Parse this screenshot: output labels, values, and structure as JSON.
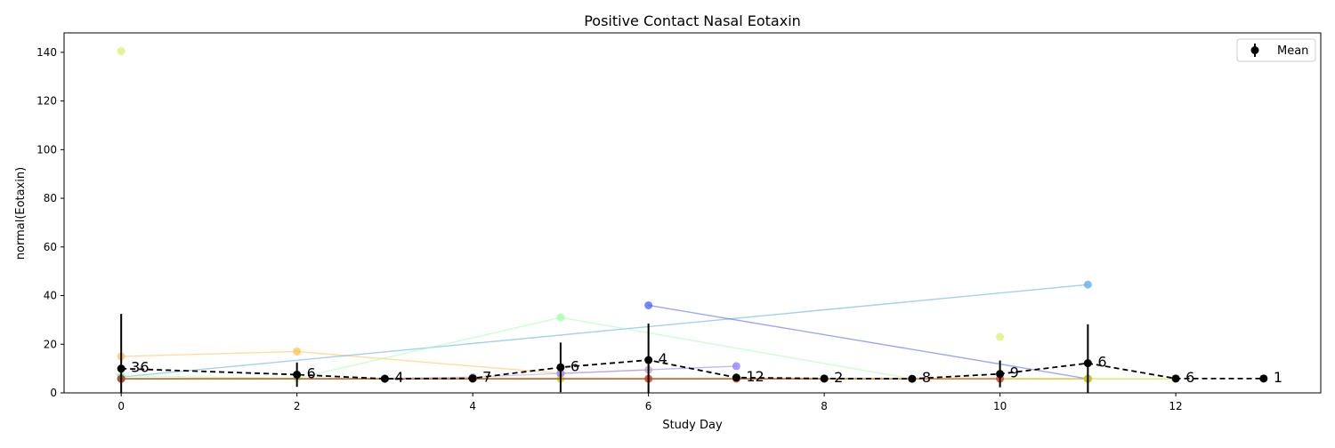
{
  "chart_data": {
    "type": "line",
    "title": "Positive Contact Nasal Eotaxin",
    "xlabel": "Study Day",
    "ylabel": "normal(Eotaxin)",
    "xlim": [
      -0.65,
      13.65
    ],
    "ylim": [
      0,
      148
    ],
    "xticks": [
      0,
      2,
      4,
      6,
      8,
      10,
      12
    ],
    "yticks": [
      0,
      20,
      40,
      60,
      80,
      100,
      120,
      140
    ],
    "grid": false,
    "legend": {
      "position": "top-right",
      "entries": [
        "Mean"
      ]
    },
    "mean": {
      "name": "Mean",
      "color": "#000000",
      "x": [
        0,
        2,
        3,
        4,
        5,
        6,
        7,
        8,
        9,
        10,
        11,
        12,
        13
      ],
      "y": [
        10,
        7.5,
        5.8,
        6,
        10.5,
        13.5,
        6.3,
        5.9,
        5.8,
        7.8,
        12.2,
        5.9,
        5.9
      ],
      "err": [
        22.5,
        5,
        0.3,
        0.6,
        10.2,
        15,
        0.6,
        0.2,
        0.2,
        5.5,
        16,
        0.2,
        0
      ],
      "counts": [
        "36",
        "6",
        "4",
        "7",
        "6",
        "4",
        "12",
        "2",
        "8",
        "9",
        "6",
        "6",
        "1"
      ]
    },
    "subjects": [
      {
        "color": "#ffc04d",
        "x": [
          0,
          2,
          5
        ],
        "y": [
          15,
          17,
          8
        ]
      },
      {
        "color": "#5aa9e6",
        "x": [
          0,
          11
        ],
        "y": [
          6.5,
          44.5
        ]
      },
      {
        "color": "#9effa8",
        "x": [
          0,
          2,
          5,
          9
        ],
        "y": [
          7,
          6,
          31,
          5.8
        ]
      },
      {
        "color": "#4a5ef5",
        "x": [
          6,
          11
        ],
        "y": [
          36,
          5.8
        ]
      },
      {
        "color": "#ff8c1a",
        "x": [
          0,
          11
        ],
        "y": [
          5.8,
          5.8
        ]
      },
      {
        "color": "#c0d800",
        "x": [
          0,
          5,
          6,
          11,
          12
        ],
        "y": [
          5.8,
          5.8,
          5.8,
          5.8,
          5.8
        ]
      },
      {
        "color": "#8c7bff",
        "x": [
          5,
          7
        ],
        "y": [
          8,
          11
        ]
      },
      {
        "color": "#e03020",
        "x": [
          0,
          4,
          6,
          7,
          10
        ],
        "y": [
          5.8,
          5.8,
          5.8,
          5.8,
          5.8
        ]
      },
      {
        "color": "#a05a30",
        "x": [
          0,
          4,
          8
        ],
        "y": [
          5.8,
          5.8,
          5.8
        ]
      },
      {
        "color": "#d8f070",
        "x": [
          0
        ],
        "y": [
          140.5
        ]
      },
      {
        "color": "#d8f070",
        "x": [
          10
        ],
        "y": [
          23
        ]
      },
      {
        "color": "#b8a0c8",
        "x": [
          3,
          4,
          6
        ],
        "y": [
          6,
          6.5,
          9.5
        ]
      }
    ]
  }
}
